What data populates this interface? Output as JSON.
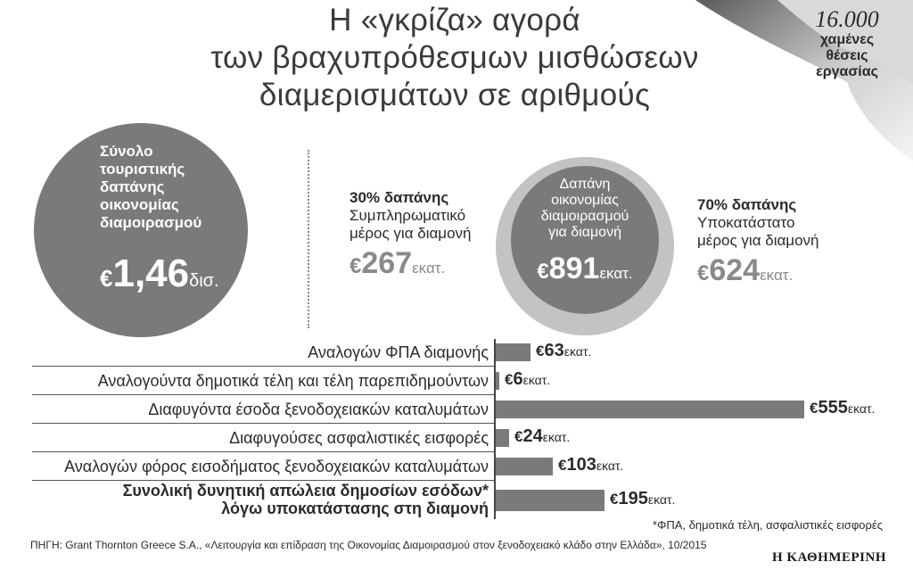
{
  "title": {
    "line1": "Η «γκρίζα» αγορά",
    "line2": "των βραχυπρόθεσμων μισθώσεων",
    "line3": "διαμερισμάτων σε αριθμούς"
  },
  "corner": {
    "number": "16.000",
    "label_line1": "χαμένες",
    "label_line2": "θέσεις",
    "label_line3": "εργασίας"
  },
  "total": {
    "label_line1": "Σύνολο",
    "label_line2": "τουριστικής",
    "label_line3": "δαπάνης",
    "label_line4": "οικονομίας",
    "label_line5": "διαμοιρασμού",
    "currency": "€",
    "value": "1,46",
    "unit": "δισ."
  },
  "share30": {
    "title": "30% δαπάνης",
    "desc_line1": "Συμπληρωματικό",
    "desc_line2": "μέρος για διαμονή",
    "currency": "€",
    "value": "267",
    "unit": "εκατ."
  },
  "accommodation": {
    "label_line1": "Δαπάνη",
    "label_line2": "οικονομίας",
    "label_line3": "διαμοιρασμού",
    "label_line4": "για διαμονή",
    "currency": "€",
    "value": "891",
    "unit": "εκατ."
  },
  "share70": {
    "title": "70% δαπάνης",
    "desc_line1": "Υποκατάστατο",
    "desc_line2": "μέρος για διαμονή",
    "currency": "€",
    "value": "624",
    "unit": "εκατ."
  },
  "chart_data": {
    "type": "bar",
    "orientation": "horizontal",
    "unit": "εκατ.",
    "categories": [
      "Αναλογών ΦΠΑ διαμονής",
      "Αναλογούντα δημοτικά τέλη και τέλη παρεπιδημούντων",
      "Διαφυγόντα έσοδα ξενοδοχειακών καταλυμάτων",
      "Διαφυγούσες ασφαλιστικές εισφορές",
      "Αναλογών φόρος εισοδήματος ξενοδοχειακών καταλυμάτων",
      "Συνολική δυνητική απώλεια δημοσίων εσόδων* λόγω υποκατάστασης στη διαμονή"
    ],
    "values": [
      63,
      6,
      555,
      24,
      103,
      195
    ],
    "value_labels": [
      "63",
      "6",
      "555",
      "24",
      "103",
      "195"
    ],
    "total_label_line1": "Συνολική δυνητική απώλεια δημοσίων εσόδων*",
    "total_label_line2": "λόγω υποκατάστασης στη διαμονή",
    "currency": "€",
    "xlim": [
      0,
      620
    ],
    "grid": false,
    "color": "#7a7a7a"
  },
  "footnote": "*ΦΠΑ, δημοτικά τέλη, ασφαλιστικές εισφορές",
  "source": "ΠΗΓΗ: Grant Thornton Greece S.A.,  «Λειτουργία και επίδραση της Οικονομίας Διαμοιρασμού στον ξενοδοχειακό κλάδο στην Ελλάδα», 10/2015",
  "brand": "Η ΚΑΘΗΜΕΡΙΝΗ"
}
